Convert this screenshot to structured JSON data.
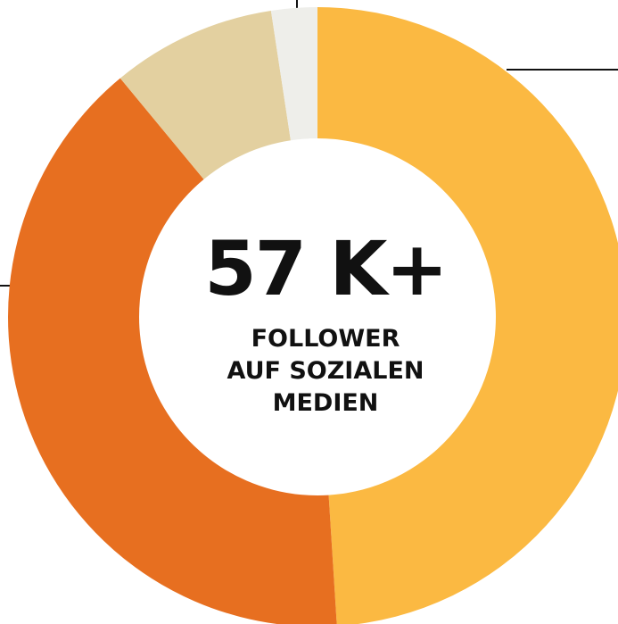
{
  "chart_data": {
    "type": "donut",
    "values": [
      49,
      40,
      8.6,
      2.4
    ],
    "colors": [
      "#fbb942",
      "#e76f20",
      "#e3d0a0",
      "#eeeeea"
    ],
    "title": "57 K+",
    "caption": [
      "FOLLOWER",
      "AUF SOZIALEN",
      "MEDIEN"
    ]
  }
}
